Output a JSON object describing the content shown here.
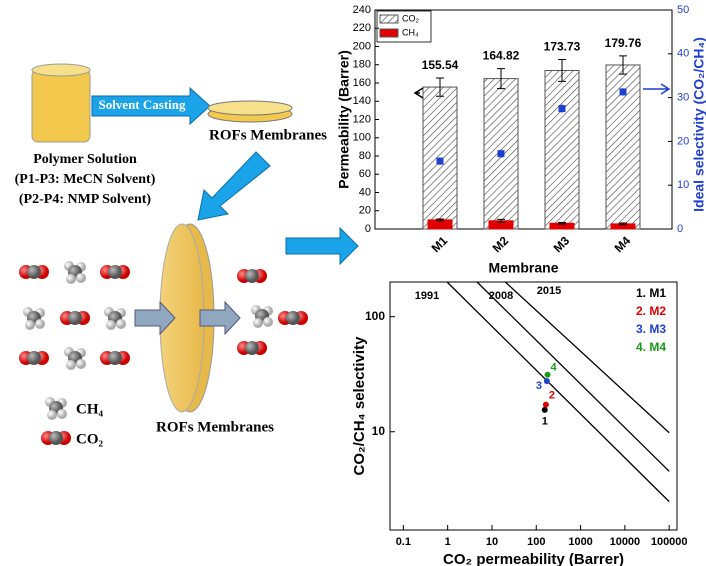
{
  "diagram": {
    "casting": "Solvent Casting",
    "membrane_top": "ROFs Membranes",
    "solution": "Polymer Solution",
    "solvent1": "(P1-P3: MeCN Solvent)",
    "solvent2": "(P2-P4: NMP Solvent)",
    "membrane_bottom": "ROFs Membranes",
    "legend_ch4": "CH₄",
    "legend_co2": "CO₂"
  },
  "chart_data": [
    {
      "type": "bar",
      "x_label": "Membrane",
      "y_label": "Permeability (Barrer)",
      "y2_label": "Ideal selectivity (CO₂/CH₄)",
      "categories": [
        "M1",
        "M2",
        "M3",
        "M4"
      ],
      "series": [
        {
          "name": "CO₂",
          "color": "#ffffff",
          "hatch": true,
          "values": [
            155.54,
            164.82,
            173.73,
            179.76
          ],
          "errors": [
            10,
            11,
            12,
            10
          ]
        },
        {
          "name": "CH₄",
          "color": "#e00000",
          "values": [
            10,
            9,
            6.3,
            5.6
          ],
          "errors": [
            1,
            1.5,
            0.8,
            1
          ]
        },
        {
          "color": "#1f3fd1",
          "axis": "y2",
          "values": [
            15.5,
            17.2,
            27.5,
            31.3
          ],
          "errors": [
            0.8,
            0.9,
            0.9,
            0.8
          ]
        }
      ],
      "ylim": [
        0,
        240
      ],
      "yticks": [
        0,
        20,
        40,
        60,
        80,
        100,
        120,
        140,
        160,
        180,
        200,
        220,
        240
      ],
      "y2lim": [
        0,
        50
      ],
      "y2ticks": [
        0,
        10,
        20,
        30,
        40,
        50
      ],
      "legend": "upper left"
    },
    {
      "type": "scatter",
      "x_label": "CO₂ permeability (Barrer)",
      "y_label": "CO₂/CH₄ selectivity",
      "xscale": "log",
      "yscale": "log",
      "xlim": [
        0.05,
        150000
      ],
      "xticks": [
        0.1,
        1,
        10,
        100,
        1000,
        10000,
        100000
      ],
      "ylim": [
        1.4,
        200
      ],
      "yticks": [
        10,
        100
      ],
      "bounds": [
        {
          "name": "1991",
          "x": [
            0.97,
            100000
          ],
          "y": [
            200,
            2.47
          ]
        },
        {
          "name": "2008",
          "x": [
            4.6,
            100000
          ],
          "y": [
            200,
            4.53
          ]
        },
        {
          "name": "2015",
          "x": [
            20,
            100000
          ],
          "y": [
            200,
            9.8
          ]
        }
      ],
      "series": [
        {
          "name": "1. M1",
          "label": "1",
          "color": "#000000",
          "x": [
            155.54
          ],
          "values": [
            15.5
          ]
        },
        {
          "name": "2. M2",
          "label": "2",
          "color": "#e00000",
          "x": [
            164.82
          ],
          "values": [
            17.2
          ]
        },
        {
          "name": "3. M3",
          "label": "3",
          "color": "#1f3fd1",
          "x": [
            173.73
          ],
          "values": [
            27.5
          ]
        },
        {
          "name": "4. M4",
          "label": "4",
          "color": "#1a9a1a",
          "x": [
            179.76
          ],
          "values": [
            31.3
          ]
        }
      ],
      "legend": "upper right"
    }
  ]
}
